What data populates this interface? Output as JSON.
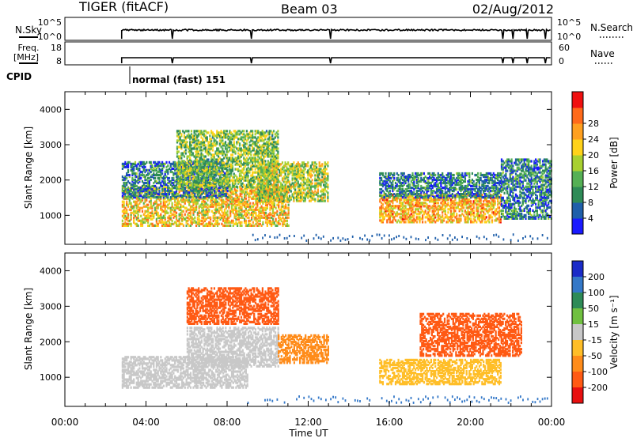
{
  "header": {
    "title": "TIGER (fitACF)",
    "beam": "Beam 03",
    "date": "02/Aug/2012"
  },
  "status_panels": {
    "nsky_label": "N.Sky",
    "nsky_ticks": [
      "10^5",
      "10^0"
    ],
    "nsearch_label": "N.Search",
    "nsearch_ticks": [
      "10^5",
      "10^0"
    ],
    "freq_label": "Freq.",
    "freq_unit": "[MHz]",
    "freq_ticks": [
      "18",
      "8"
    ],
    "nave_label": "Nave",
    "nave_ticks": [
      "60",
      "0"
    ],
    "cpid_label": "CPID",
    "cpid_text": "normal (fast) 151"
  },
  "chart_data": [
    {
      "type": "heatmap",
      "name": "power",
      "ylabel": "Slant Range [km]",
      "yticks": [
        1000,
        2000,
        3000,
        4000
      ],
      "ylim": [
        180,
        4500
      ],
      "xlabel": "Time UT",
      "xticks": [
        "00:00",
        "04:00",
        "08:00",
        "12:00",
        "16:00",
        "20:00",
        "00:00"
      ],
      "xlim_hours": [
        0,
        24
      ],
      "colorbar": {
        "label": "Power [dB]",
        "ticks": [
          4,
          8,
          12,
          16,
          20,
          24,
          28
        ],
        "range": [
          0,
          32
        ],
        "colors": [
          "#1a1aff",
          "#1f5faa",
          "#2e8b57",
          "#55b055",
          "#a8d030",
          "#ffd21a",
          "#ffa020",
          "#ff6a1a",
          "#f01010"
        ]
      },
      "echo_regions": [
        {
          "t_start": 2.8,
          "t_end": 11.0,
          "r_min": 700,
          "r_max": 1800,
          "value_mean": 20
        },
        {
          "t_start": 2.8,
          "t_end": 8.0,
          "r_min": 1500,
          "r_max": 2500,
          "value_mean": 8
        },
        {
          "t_start": 5.5,
          "t_end": 10.5,
          "r_min": 1800,
          "r_max": 3400,
          "value_mean": 14
        },
        {
          "t_start": 9.5,
          "t_end": 13.0,
          "r_min": 1400,
          "r_max": 2500,
          "value_mean": 16
        },
        {
          "t_start": 15.5,
          "t_end": 21.5,
          "r_min": 800,
          "r_max": 1600,
          "value_mean": 22
        },
        {
          "t_start": 15.5,
          "t_end": 21.5,
          "r_min": 1500,
          "r_max": 2200,
          "value_mean": 8
        },
        {
          "t_start": 21.5,
          "t_end": 24.0,
          "r_min": 900,
          "r_max": 2600,
          "value_mean": 8
        }
      ]
    },
    {
      "type": "heatmap",
      "name": "velocity",
      "ylabel": "Slant Range [km]",
      "yticks": [
        1000,
        2000,
        3000,
        4000
      ],
      "ylim": [
        180,
        4500
      ],
      "xlabel": "Time UT",
      "xticks": [
        "00:00",
        "04:00",
        "08:00",
        "12:00",
        "16:00",
        "20:00",
        "00:00"
      ],
      "xlim_hours": [
        0,
        24
      ],
      "colorbar": {
        "label": "Velocity [m s⁻¹]",
        "ticks": [
          "200",
          "100",
          "50",
          "15",
          "-15",
          "-50",
          "-100",
          "-200"
        ],
        "colors": [
          "#1a2bc8",
          "#3478c8",
          "#2e8b57",
          "#70c040",
          "#c8c8c8",
          "#ffbe28",
          "#ff8c1a",
          "#ff5a14",
          "#e81010"
        ]
      },
      "echo_regions": [
        {
          "t_start": 2.8,
          "t_end": 9.0,
          "r_min": 700,
          "r_max": 1600,
          "value_mean": -20
        },
        {
          "t_start": 6.0,
          "t_end": 10.5,
          "r_min": 1300,
          "r_max": 2400,
          "value_mean": -5
        },
        {
          "t_start": 6.0,
          "t_end": 10.5,
          "r_min": 2500,
          "r_max": 3500,
          "value_mean": -150
        },
        {
          "t_start": 10.5,
          "t_end": 13.0,
          "r_min": 1400,
          "r_max": 2200,
          "value_mean": -120
        },
        {
          "t_start": 15.5,
          "t_end": 21.5,
          "r_min": 800,
          "r_max": 1500,
          "value_mean": -60
        },
        {
          "t_start": 17.5,
          "t_end": 22.5,
          "r_min": 1600,
          "r_max": 2800,
          "value_mean": -180
        }
      ]
    }
  ]
}
